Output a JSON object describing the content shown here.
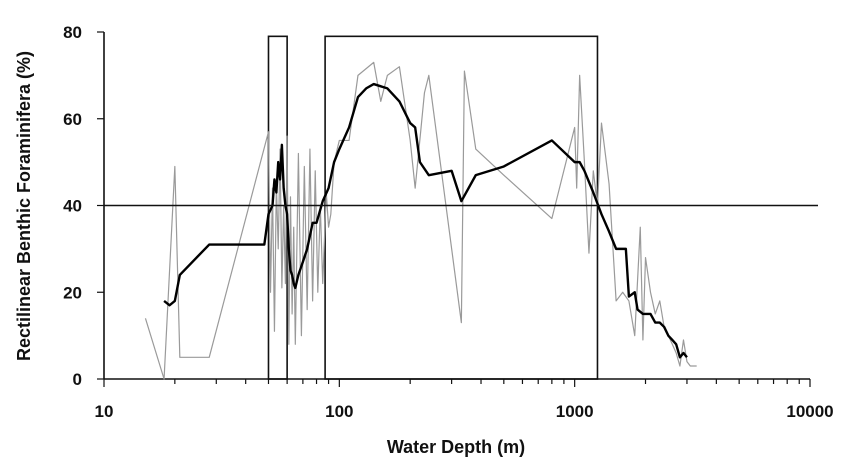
{
  "chart_data": {
    "type": "line",
    "title": "",
    "xlabel": "Water Depth (m)",
    "ylabel": "Rectilinear Benthic Foraminifera (%)",
    "xscale": "log",
    "xlim": [
      10,
      10000
    ],
    "ylim": [
      0,
      80
    ],
    "x_ticks": [
      10,
      100,
      1000,
      10000
    ],
    "x_tick_labels": [
      "10",
      "100",
      "1000",
      "10000"
    ],
    "y_ticks": [
      0,
      20,
      40,
      60,
      80
    ],
    "y_tick_labels": [
      "0",
      "20",
      "40",
      "60",
      "80"
    ],
    "grid": false,
    "legend": "none",
    "reference_line": {
      "y": 40
    },
    "boxes": [
      {
        "x0": 50,
        "x1": 60,
        "y0": 0,
        "y1": 79
      },
      {
        "x0": 87,
        "x1": 1250,
        "y0": 0,
        "y1": 79
      }
    ],
    "series": [
      {
        "color": "#9a9a9a",
        "width": 1.2,
        "points": [
          [
            15,
            14
          ],
          [
            18,
            0
          ],
          [
            20,
            49
          ],
          [
            21,
            5
          ],
          [
            28,
            5
          ],
          [
            50,
            57
          ],
          [
            51,
            20
          ],
          [
            52,
            44
          ],
          [
            53,
            11
          ],
          [
            54,
            45
          ],
          [
            55,
            30
          ],
          [
            56,
            53
          ],
          [
            57,
            21
          ],
          [
            58,
            40
          ],
          [
            59,
            22
          ],
          [
            60,
            56
          ],
          [
            61,
            8
          ],
          [
            62,
            42
          ],
          [
            63,
            15
          ],
          [
            64,
            35
          ],
          [
            65,
            8
          ],
          [
            67,
            52
          ],
          [
            69,
            10
          ],
          [
            71,
            49
          ],
          [
            73,
            16
          ],
          [
            75,
            53
          ],
          [
            77,
            18
          ],
          [
            79,
            48
          ],
          [
            81,
            20
          ],
          [
            83,
            40
          ],
          [
            85,
            22
          ],
          [
            88,
            43
          ],
          [
            90,
            35
          ],
          [
            92,
            38
          ],
          [
            95,
            50
          ],
          [
            100,
            55
          ],
          [
            110,
            55
          ],
          [
            120,
            70
          ],
          [
            140,
            73
          ],
          [
            150,
            64
          ],
          [
            160,
            70
          ],
          [
            180,
            72
          ],
          [
            200,
            55
          ],
          [
            210,
            44
          ],
          [
            230,
            66
          ],
          [
            240,
            70
          ],
          [
            330,
            13
          ],
          [
            340,
            71
          ],
          [
            380,
            53
          ],
          [
            500,
            47
          ],
          [
            800,
            37
          ],
          [
            1000,
            58
          ],
          [
            1020,
            44
          ],
          [
            1050,
            70
          ],
          [
            1100,
            50
          ],
          [
            1150,
            29
          ],
          [
            1200,
            48
          ],
          [
            1250,
            40
          ],
          [
            1300,
            59
          ],
          [
            1400,
            45
          ],
          [
            1500,
            18
          ],
          [
            1600,
            20
          ],
          [
            1700,
            18
          ],
          [
            1800,
            10
          ],
          [
            1900,
            35
          ],
          [
            1950,
            9
          ],
          [
            2000,
            28
          ],
          [
            2100,
            20
          ],
          [
            2200,
            15
          ],
          [
            2300,
            18
          ],
          [
            2400,
            12
          ],
          [
            2500,
            10
          ],
          [
            2600,
            8
          ],
          [
            2700,
            6
          ],
          [
            2800,
            3
          ],
          [
            2900,
            9
          ],
          [
            3000,
            4
          ],
          [
            3100,
            3
          ],
          [
            3300,
            3
          ]
        ]
      },
      {
        "color": "#000000",
        "width": 2.4,
        "points": [
          [
            18,
            18
          ],
          [
            19,
            17
          ],
          [
            20,
            18
          ],
          [
            21,
            24
          ],
          [
            28,
            31
          ],
          [
            48,
            31
          ],
          [
            50,
            38
          ],
          [
            52,
            40
          ],
          [
            53,
            46
          ],
          [
            54,
            43
          ],
          [
            55,
            50
          ],
          [
            56,
            46
          ],
          [
            57,
            54
          ],
          [
            58,
            44
          ],
          [
            59,
            40
          ],
          [
            60,
            38
          ],
          [
            61,
            30
          ],
          [
            62,
            25
          ],
          [
            63,
            24
          ],
          [
            64,
            22
          ],
          [
            65,
            21
          ],
          [
            67,
            24
          ],
          [
            70,
            27
          ],
          [
            73,
            30
          ],
          [
            77,
            36
          ],
          [
            80,
            36
          ],
          [
            85,
            41
          ],
          [
            90,
            44
          ],
          [
            95,
            50
          ],
          [
            100,
            53
          ],
          [
            110,
            58
          ],
          [
            120,
            65
          ],
          [
            130,
            67
          ],
          [
            140,
            68
          ],
          [
            160,
            67
          ],
          [
            180,
            64
          ],
          [
            200,
            59
          ],
          [
            210,
            58
          ],
          [
            220,
            50
          ],
          [
            240,
            47
          ],
          [
            300,
            48
          ],
          [
            330,
            41
          ],
          [
            380,
            47
          ],
          [
            500,
            49
          ],
          [
            800,
            55
          ],
          [
            1000,
            50
          ],
          [
            1050,
            50
          ],
          [
            1100,
            48
          ],
          [
            1200,
            43
          ],
          [
            1300,
            38
          ],
          [
            1400,
            34
          ],
          [
            1500,
            30
          ],
          [
            1650,
            30
          ],
          [
            1700,
            19
          ],
          [
            1800,
            20
          ],
          [
            1850,
            16
          ],
          [
            1950,
            15
          ],
          [
            2100,
            15
          ],
          [
            2200,
            13
          ],
          [
            2300,
            13
          ],
          [
            2400,
            12
          ],
          [
            2500,
            10
          ],
          [
            2600,
            9
          ],
          [
            2700,
            8
          ],
          [
            2800,
            5
          ],
          [
            2900,
            6
          ],
          [
            3000,
            5
          ]
        ]
      }
    ]
  }
}
